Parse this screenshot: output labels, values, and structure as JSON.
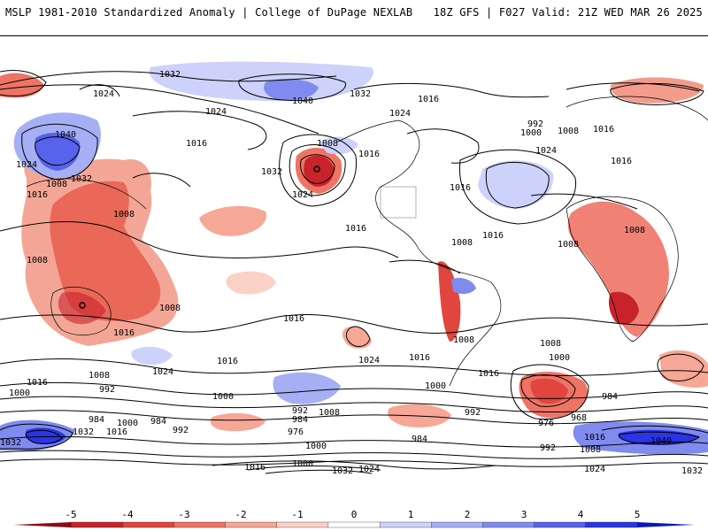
{
  "header": {
    "left_title": "MSLP 1981-2010 Standardized Anomaly | College of DuPage NEXLAB",
    "right_title": "18Z GFS | F027 Valid: 21Z WED MAR 26 2025"
  },
  "map": {
    "isobar_labels": [
      "1032",
      "1024",
      "1040",
      "1032",
      "1024",
      "1016",
      "1032",
      "1008",
      "1024",
      "1016",
      "1016",
      "1016",
      "1024",
      "992",
      "1000",
      "1008",
      "1016",
      "1016",
      "1024",
      "1016",
      "1008",
      "1008",
      "1016",
      "1008",
      "1040",
      "1024",
      "1016",
      "1032",
      "1008",
      "1008",
      "1016",
      "1008",
      "1008",
      "1016",
      "1024",
      "1016",
      "1016",
      "1008",
      "1000",
      "992",
      "1000",
      "984",
      "1000",
      "984",
      "992",
      "984",
      "1032",
      "1016",
      "992",
      "976",
      "1008",
      "1024",
      "1000",
      "1008",
      "1016",
      "984",
      "992",
      "1016",
      "1000",
      "1008",
      "1000",
      "984",
      "976",
      "968",
      "992",
      "1032",
      "1016",
      "1040",
      "1008",
      "1024",
      "1032",
      "1000",
      "1016",
      "1032",
      "1024"
    ]
  },
  "colorbar": {
    "ticks": [
      "-5",
      "-4",
      "-3",
      "-2",
      "-1",
      "0",
      "1",
      "2",
      "3",
      "4",
      "5"
    ],
    "colors": [
      "#8c0a14",
      "#c8232b",
      "#e0463e",
      "#ee7466",
      "#f6a796",
      "#fbd1c6",
      "#ffffff",
      "#cdd2fa",
      "#a6aff4",
      "#7f8bee",
      "#5663ea",
      "#2b35e3",
      "#0b16b8"
    ]
  }
}
